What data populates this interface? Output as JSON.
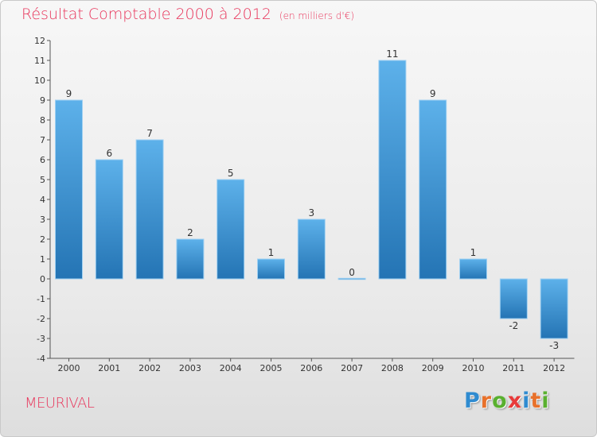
{
  "title": "Résultat Comptable 2000 à 2012",
  "subtitle": "(en milliers d'€)",
  "commune": "MEURIVAL",
  "logo": {
    "letters": [
      "P",
      "r",
      "o",
      "x",
      "i",
      "t",
      "i"
    ],
    "colors": [
      "#2f8bd0",
      "#e8712b",
      "#59b02f",
      "#e83a3a",
      "#2f8bd0",
      "#e8712b",
      "#59b02f"
    ]
  },
  "colors": {
    "accent": "#e8355b",
    "bar_light": "#5db1ea",
    "bar_dark": "#2474b4"
  },
  "chart_data": {
    "type": "bar",
    "title": "Résultat Comptable 2000 à 2012",
    "categories": [
      "2000",
      "2001",
      "2002",
      "2003",
      "2004",
      "2005",
      "2006",
      "2007",
      "2008",
      "2009",
      "2010",
      "2011",
      "2012"
    ],
    "values": [
      9,
      6,
      7,
      2,
      5,
      1,
      3,
      0,
      11,
      9,
      1,
      -2,
      -3
    ],
    "data_labels": [
      "9",
      "6",
      "7",
      "2",
      "5",
      "1",
      "3",
      "0",
      "11",
      "9",
      "1",
      "-2",
      "-3"
    ],
    "ylim": [
      -4,
      12
    ],
    "yticks": [
      -4,
      -3,
      -2,
      -1,
      0,
      1,
      2,
      3,
      4,
      5,
      6,
      7,
      8,
      9,
      10,
      11,
      12
    ],
    "ytick_labels": [
      "-4",
      "-3",
      "-2",
      "-1",
      "0",
      "1",
      "2",
      "3",
      "4",
      "5",
      "6",
      "7",
      "8",
      "9",
      "10",
      "11",
      "12"
    ],
    "xlabel": "",
    "ylabel": "",
    "grid": false
  }
}
